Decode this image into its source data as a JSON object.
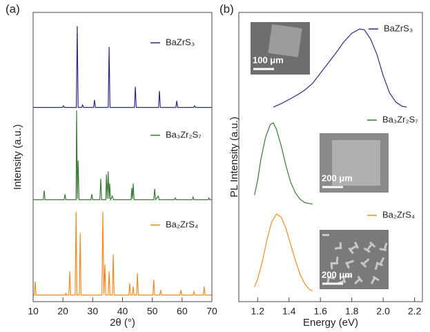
{
  "chart_data": [
    {
      "type": "line",
      "panel_label": "(a)",
      "x_label": "2θ (°)",
      "y_label": "Intensity (a.u.)",
      "xlim": [
        10,
        70
      ],
      "xticks": [
        10,
        20,
        30,
        40,
        50,
        60,
        70
      ],
      "series": [
        {
          "name": "BaZrS₃",
          "color": "#2b2a8a",
          "x": [
            10,
            19.9,
            20.2,
            20.5,
            24.5,
            24.8,
            25.1,
            26.3,
            26.6,
            26.9,
            30.3,
            30.6,
            30.9,
            35.2,
            35.5,
            35.8,
            44.0,
            44.3,
            44.6,
            52.1,
            52.4,
            52.7,
            57.9,
            58.2,
            58.5,
            63.9,
            64.2,
            64.5,
            70
          ],
          "values": [
            2,
            2,
            4,
            2,
            2,
            100,
            2,
            2,
            5,
            2,
            2,
            11,
            2,
            2,
            75,
            2,
            2,
            27,
            2,
            2,
            22,
            2,
            2,
            10,
            2,
            2,
            4,
            2,
            2
          ]
        },
        {
          "name": "Ba₃Zr₂S₇",
          "color": "#3b7a36",
          "x": [
            10,
            13.4,
            13.7,
            14.0,
            20.4,
            20.7,
            21.0,
            24.4,
            24.6,
            24.85,
            25.1,
            25.4,
            29.4,
            29.7,
            30.0,
            32.4,
            32.7,
            33.0,
            34.4,
            34.6,
            34.9,
            35.2,
            35.45,
            35.7,
            36.0,
            36.6,
            37.0,
            42.9,
            43.1,
            43.35,
            43.6,
            43.9,
            50.5,
            50.8,
            51.1,
            52.0,
            52.3,
            57.4,
            57.7,
            58.0,
            63.4,
            63.7,
            64.0,
            68.7,
            69.0,
            69.3,
            70
          ],
          "values": [
            2,
            2,
            12,
            2,
            2,
            8,
            2,
            2,
            100,
            3,
            45,
            2,
            2,
            8,
            2,
            2,
            25,
            2,
            2,
            30,
            3,
            33,
            3,
            20,
            2,
            6,
            2,
            2,
            15,
            3,
            20,
            2,
            2,
            14,
            2,
            6,
            2,
            2,
            4,
            2,
            2,
            5,
            2,
            2,
            4,
            2,
            2
          ]
        },
        {
          "name": "Ba₂ZrS₄",
          "color": "#f08a24",
          "x": [
            10,
            10.4,
            10.7,
            11.0,
            20.8,
            21.0,
            21.2,
            22.0,
            22.3,
            22.6,
            24.1,
            24.4,
            24.7,
            25.5,
            25.8,
            26.1,
            33.1,
            33.4,
            33.75,
            34.1,
            34.4,
            35.2,
            35.5,
            35.8,
            36.6,
            36.9,
            37.2,
            42.1,
            42.4,
            42.7,
            43.3,
            43.6,
            43.9,
            44.7,
            45.0,
            45.3,
            50.2,
            50.5,
            50.8,
            52.5,
            52.8,
            53.1,
            59.3,
            59.6,
            59.9,
            63.7,
            64.0,
            64.3,
            67.1,
            67.4,
            67.7,
            70
          ],
          "values": [
            2,
            2,
            18,
            2,
            2,
            4,
            2,
            2,
            30,
            2,
            2,
            100,
            2,
            2,
            75,
            2,
            2,
            100,
            3,
            38,
            2,
            2,
            30,
            2,
            2,
            50,
            2,
            2,
            16,
            2,
            2,
            12,
            2,
            2,
            28,
            2,
            2,
            20,
            2,
            2,
            8,
            2,
            2,
            8,
            2,
            2,
            6,
            2,
            2,
            12,
            2,
            2
          ]
        }
      ]
    },
    {
      "type": "line",
      "panel_label": "(b)",
      "x_label": "Energy (eV)",
      "y_label": "PL Intensity (a.u.)",
      "xlim": [
        1.08,
        2.25
      ],
      "xticks": [
        1.2,
        1.4,
        1.6,
        1.8,
        {
          "value": 2,
          "label": "2.0"
        },
        2.2
      ],
      "series": [
        {
          "name": "BaZrS₃",
          "color": "#2b2a8a",
          "x": [
            1.3,
            1.35,
            1.4,
            1.45,
            1.5,
            1.55,
            1.6,
            1.65,
            1.7,
            1.75,
            1.8,
            1.85,
            1.88,
            1.92,
            1.96,
            2.0,
            2.04,
            2.08,
            2.12,
            2.15
          ],
          "values": [
            8,
            12,
            17,
            22,
            28,
            36,
            48,
            60,
            72,
            85,
            95,
            100,
            99,
            88,
            70,
            45,
            25,
            14,
            9,
            8
          ]
        },
        {
          "name": "Ba₃Zr₂S₇",
          "color": "#3b7a36",
          "x": [
            1.18,
            1.2,
            1.22,
            1.25,
            1.28,
            1.3,
            1.32,
            1.35,
            1.38,
            1.41,
            1.44,
            1.47,
            1.5,
            1.55
          ],
          "values": [
            12,
            30,
            55,
            82,
            98,
            100,
            92,
            72,
            48,
            28,
            15,
            7,
            3,
            1
          ]
        },
        {
          "name": "Ba₂ZrS₄",
          "color": "#f08a24",
          "x": [
            1.18,
            1.2,
            1.23,
            1.26,
            1.29,
            1.32,
            1.35,
            1.38,
            1.41,
            1.44,
            1.47,
            1.5,
            1.53,
            1.55
          ],
          "values": [
            8,
            18,
            40,
            68,
            90,
            100,
            96,
            82,
            62,
            42,
            24,
            12,
            5,
            3
          ]
        }
      ],
      "insets": [
        {
          "scale_bar": "100 μm"
        },
        {
          "scale_bar": "200 μm"
        },
        {
          "scale_bar": "200 μm"
        }
      ]
    }
  ]
}
